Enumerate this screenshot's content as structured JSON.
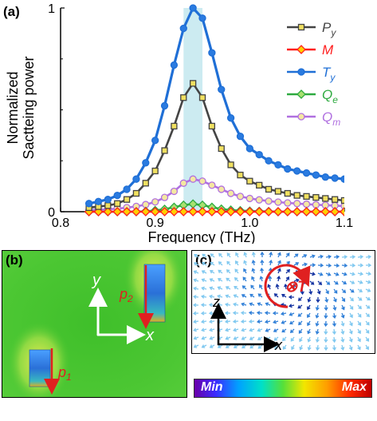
{
  "panel_labels": {
    "a": "(a)",
    "b": "(b)",
    "c": "(c)"
  },
  "chart_data": {
    "type": "line",
    "xlabel": "Frequency (THz)",
    "ylabel_line1": "Normalized",
    "ylabel_line2": "Sactteing power",
    "xlim": [
      0.8,
      1.1
    ],
    "ylim": [
      0,
      1
    ],
    "xticks": [
      "0.8",
      "0.9",
      "1.0",
      "1.1"
    ],
    "yticks": [
      "0",
      "1"
    ],
    "highlight_band": [
      0.93,
      0.95
    ],
    "x": [
      0.83,
      0.84,
      0.85,
      0.86,
      0.87,
      0.88,
      0.89,
      0.9,
      0.91,
      0.92,
      0.93,
      0.94,
      0.95,
      0.96,
      0.97,
      0.98,
      0.99,
      1.0,
      1.01,
      1.02,
      1.03,
      1.04,
      1.05,
      1.06,
      1.07,
      1.08,
      1.09,
      1.1
    ],
    "series": [
      {
        "name": "P",
        "sub": "y",
        "color": "#444444",
        "fill": "#f0e060",
        "marker": "square",
        "values": [
          0.02,
          0.025,
          0.03,
          0.04,
          0.06,
          0.09,
          0.14,
          0.2,
          0.3,
          0.42,
          0.56,
          0.63,
          0.56,
          0.42,
          0.31,
          0.23,
          0.18,
          0.15,
          0.13,
          0.11,
          0.1,
          0.09,
          0.08,
          0.075,
          0.07,
          0.065,
          0.06,
          0.055
        ]
      },
      {
        "name": "M",
        "sub": "",
        "color": "#ff2020",
        "fill": "#ffd000",
        "marker": "diamond",
        "values": [
          0,
          0,
          0,
          0,
          0,
          0,
          0,
          0,
          0,
          0,
          0,
          0,
          0,
          0,
          0,
          0,
          0,
          0,
          0,
          0,
          0,
          0,
          0,
          0,
          0,
          0,
          0,
          0
        ]
      },
      {
        "name": "T",
        "sub": "y",
        "color": "#1f6fd6",
        "fill": "#2a7be0",
        "marker": "circle",
        "values": [
          0.04,
          0.05,
          0.06,
          0.08,
          0.11,
          0.16,
          0.24,
          0.35,
          0.52,
          0.72,
          0.9,
          1.0,
          0.95,
          0.78,
          0.6,
          0.46,
          0.37,
          0.31,
          0.28,
          0.25,
          0.23,
          0.21,
          0.2,
          0.19,
          0.18,
          0.17,
          0.165,
          0.16
        ]
      },
      {
        "name": "Q",
        "sub": "e",
        "color": "#2eaa40",
        "fill": "#a8e070",
        "marker": "diamond",
        "values": [
          0,
          0,
          0,
          0,
          0,
          0,
          0.002,
          0.006,
          0.012,
          0.022,
          0.032,
          0.038,
          0.032,
          0.022,
          0.013,
          0.008,
          0.005,
          0.003,
          0.002,
          0.001,
          0,
          0,
          0,
          0,
          0,
          0,
          0,
          0
        ]
      },
      {
        "name": "Q",
        "sub": "m",
        "color": "#b070e0",
        "fill": "#f4e8a0",
        "marker": "circle",
        "values": [
          0.008,
          0.01,
          0.012,
          0.015,
          0.02,
          0.026,
          0.035,
          0.048,
          0.07,
          0.1,
          0.14,
          0.16,
          0.15,
          0.13,
          0.11,
          0.09,
          0.075,
          0.065,
          0.058,
          0.052,
          0.047,
          0.043,
          0.04,
          0.037,
          0.034,
          0.032,
          0.03,
          0.028
        ]
      }
    ]
  },
  "panel_b": {
    "axis_y": "y",
    "axis_x": "x",
    "p1_label": "p",
    "p1_sub": "1",
    "p2_label": "p",
    "p2_sub": "2"
  },
  "panel_c": {
    "axis_z": "z",
    "axis_x": "x",
    "toroid_label": "⊗T"
  },
  "colorbar": {
    "min": "Min",
    "max": "Max"
  }
}
